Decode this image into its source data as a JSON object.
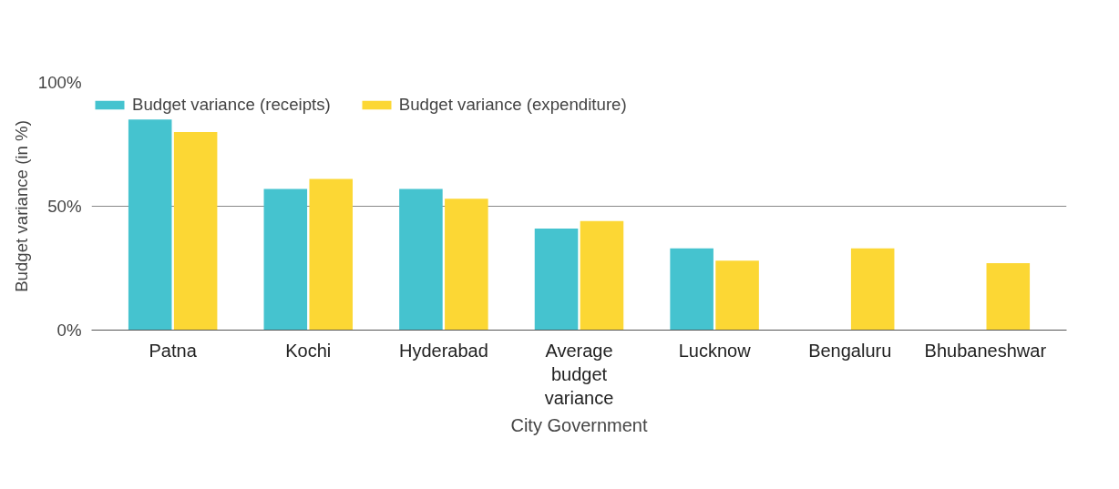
{
  "chart_data": {
    "type": "bar",
    "xlabel": "City Government",
    "ylabel": "Budget variance (in %)",
    "categories": [
      "Patna",
      "Kochi",
      "Hyderabad",
      "Average budget variance",
      "Lucknow",
      "Bengaluru",
      "Bhubaneshwar"
    ],
    "series": [
      {
        "name": "Budget variance (receipts)",
        "color": "#45c3cf",
        "values": [
          85,
          57,
          57,
          41,
          33,
          null,
          null
        ]
      },
      {
        "name": "Budget variance (expenditure)",
        "color": "#fcd734",
        "values": [
          80,
          61,
          53,
          44,
          28,
          33,
          27
        ]
      }
    ],
    "ylim": [
      0,
      100
    ],
    "yticks": [
      {
        "value": 0,
        "label": "0%"
      },
      {
        "value": 50,
        "label": "50%"
      },
      {
        "value": 100,
        "label": "100%"
      }
    ],
    "grid": "y",
    "legend": "top left"
  }
}
